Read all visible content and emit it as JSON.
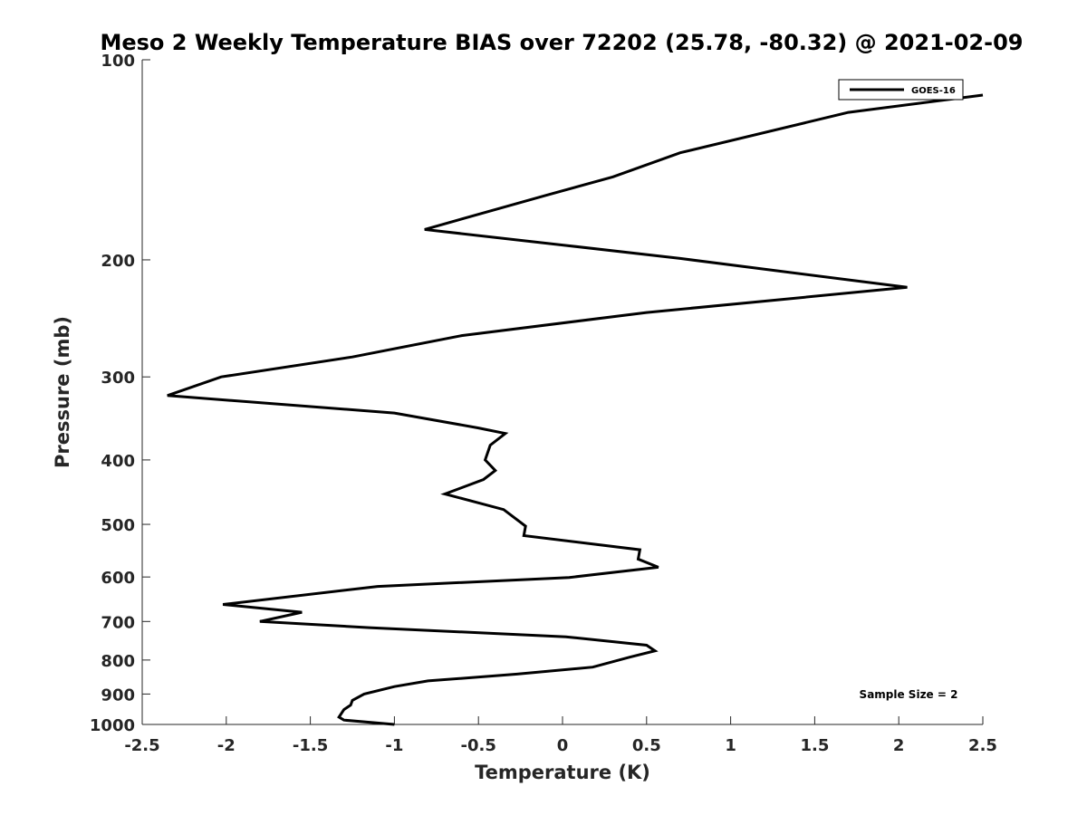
{
  "chart_data": {
    "type": "line",
    "title": "Meso 2 Weekly Temperature BIAS over 72202 (25.78, -80.32) @ 2021-02-09",
    "xlabel": "Temperature (K)",
    "ylabel": "Pressure (mb)",
    "xlim": [
      -2.5,
      2.5
    ],
    "ylim": [
      1000,
      100
    ],
    "y_scale": "log",
    "x_ticks": [
      -2.5,
      -2,
      -1.5,
      -1,
      -0.5,
      0,
      0.5,
      1,
      1.5,
      2,
      2.5
    ],
    "x_tick_labels": [
      "-2.5",
      "-2",
      "-1.5",
      "-1",
      "-0.5",
      "0",
      "0.5",
      "1",
      "1.5",
      "2",
      "2.5"
    ],
    "y_ticks": [
      100,
      200,
      300,
      400,
      500,
      600,
      700,
      800,
      900,
      1000
    ],
    "y_tick_labels": [
      "100",
      "200",
      "300",
      "400",
      "500",
      "600",
      "700",
      "800",
      "900",
      "1000"
    ],
    "grid": false,
    "legend_position": "top-right",
    "series": [
      {
        "name": "GOES-16",
        "color": "#000000",
        "points": [
          {
            "x": 2.5,
            "y": 113
          },
          {
            "x": 1.7,
            "y": 120
          },
          {
            "x": 0.7,
            "y": 138
          },
          {
            "x": 0.3,
            "y": 150
          },
          {
            "x": -0.1,
            "y": 160
          },
          {
            "x": -0.82,
            "y": 180
          },
          {
            "x": 0.0,
            "y": 190
          },
          {
            "x": 0.7,
            "y": 199
          },
          {
            "x": 2.05,
            "y": 220
          },
          {
            "x": 0.5,
            "y": 240
          },
          {
            "x": -0.6,
            "y": 260
          },
          {
            "x": -1.25,
            "y": 280
          },
          {
            "x": -2.03,
            "y": 300
          },
          {
            "x": -2.35,
            "y": 320
          },
          {
            "x": -1.0,
            "y": 340
          },
          {
            "x": -0.5,
            "y": 358
          },
          {
            "x": -0.34,
            "y": 365
          },
          {
            "x": -0.43,
            "y": 380
          },
          {
            "x": -0.46,
            "y": 400
          },
          {
            "x": -0.4,
            "y": 415
          },
          {
            "x": -0.47,
            "y": 428
          },
          {
            "x": -0.7,
            "y": 450
          },
          {
            "x": -0.35,
            "y": 475
          },
          {
            "x": -0.22,
            "y": 503
          },
          {
            "x": -0.23,
            "y": 520
          },
          {
            "x": 0.46,
            "y": 546
          },
          {
            "x": 0.45,
            "y": 564
          },
          {
            "x": 0.57,
            "y": 580
          },
          {
            "x": 0.04,
            "y": 601
          },
          {
            "x": -1.1,
            "y": 620
          },
          {
            "x": -2.02,
            "y": 660
          },
          {
            "x": -1.55,
            "y": 678
          },
          {
            "x": -1.8,
            "y": 700
          },
          {
            "x": -1.15,
            "y": 715
          },
          {
            "x": 0.02,
            "y": 738
          },
          {
            "x": 0.5,
            "y": 760
          },
          {
            "x": 0.55,
            "y": 775
          },
          {
            "x": 0.4,
            "y": 792
          },
          {
            "x": 0.18,
            "y": 820
          },
          {
            "x": -0.27,
            "y": 840
          },
          {
            "x": -0.8,
            "y": 860
          },
          {
            "x": -1.0,
            "y": 877
          },
          {
            "x": -1.18,
            "y": 900
          },
          {
            "x": -1.25,
            "y": 920
          },
          {
            "x": -1.26,
            "y": 935
          },
          {
            "x": -1.3,
            "y": 950
          },
          {
            "x": -1.33,
            "y": 975
          },
          {
            "x": -1.3,
            "y": 985
          },
          {
            "x": -1.0,
            "y": 1000
          }
        ]
      }
    ],
    "annotation": "Sample Size = 2"
  }
}
